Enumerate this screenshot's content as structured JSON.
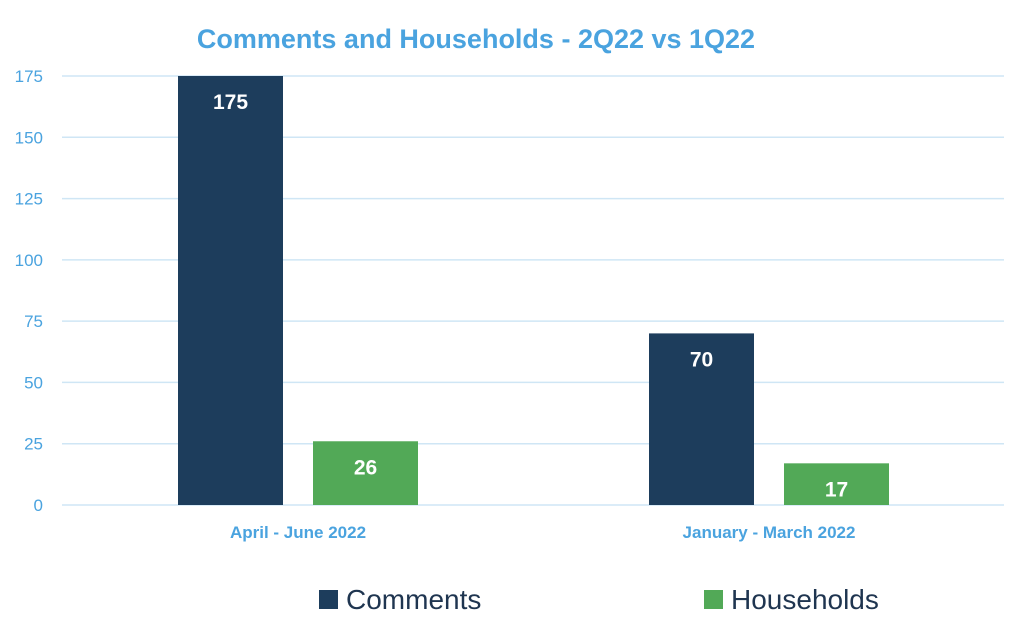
{
  "chart_data": {
    "type": "bar",
    "title": "Comments and Households - 2Q22 vs 1Q22",
    "categories": [
      "April - June 2022",
      "January - March 2022"
    ],
    "series": [
      {
        "name": "Comments",
        "values": [
          175,
          70
        ],
        "color": "#1d3d5c"
      },
      {
        "name": "Households",
        "values": [
          26,
          17
        ],
        "color": "#52a957"
      }
    ],
    "y_ticks": [
      0,
      25,
      50,
      75,
      100,
      125,
      150,
      175
    ],
    "ylim": [
      0,
      175
    ],
    "grid": true,
    "legend": "bottom",
    "data_labels": true
  },
  "colors": {
    "title": "#4aa3df",
    "axis_text": "#4aa3df",
    "gridline": "#cfe6f5"
  }
}
